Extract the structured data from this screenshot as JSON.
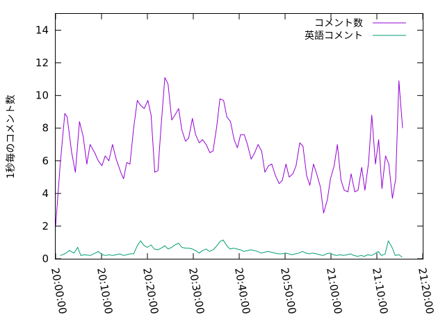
{
  "chart_data": {
    "type": "line",
    "title": "",
    "xlabel": "",
    "ylabel": "1秒毎のコメント数",
    "x_tick_labels": [
      "20:00:00",
      "20:10:00",
      "20:20:00",
      "20:30:00",
      "20:40:00",
      "20:50:00",
      "21:00:00",
      "21:10:00",
      "21:20:00"
    ],
    "x_tick_minutes": [
      0,
      10,
      20,
      30,
      40,
      50,
      60,
      70,
      80
    ],
    "xlim_minutes": [
      0,
      80
    ],
    "y_ticks": [
      0,
      2,
      4,
      6,
      8,
      10,
      12,
      14
    ],
    "ylim": [
      0,
      15
    ],
    "grid": false,
    "legend_position": "top-right",
    "series": [
      {
        "name": "コメント数",
        "color": "#9400d3",
        "points": [
          [
            0.0,
            2.0
          ],
          [
            1.0,
            5.8
          ],
          [
            2.0,
            8.9
          ],
          [
            2.5,
            8.7
          ],
          [
            3.5,
            6.5
          ],
          [
            4.3,
            5.3
          ],
          [
            5.2,
            8.4
          ],
          [
            6.0,
            7.5
          ],
          [
            6.8,
            5.8
          ],
          [
            7.5,
            7.0
          ],
          [
            8.5,
            6.5
          ],
          [
            9.3,
            6.0
          ],
          [
            10.1,
            5.7
          ],
          [
            10.8,
            6.3
          ],
          [
            11.6,
            6.0
          ],
          [
            12.4,
            7.0
          ],
          [
            13.2,
            6.1
          ],
          [
            14.2,
            5.3
          ],
          [
            14.8,
            4.9
          ],
          [
            15.5,
            5.9
          ],
          [
            16.2,
            5.8
          ],
          [
            17.0,
            8.0
          ],
          [
            17.8,
            9.7
          ],
          [
            18.5,
            9.4
          ],
          [
            19.3,
            9.2
          ],
          [
            20.1,
            9.7
          ],
          [
            20.8,
            8.8
          ],
          [
            21.6,
            5.3
          ],
          [
            22.3,
            5.4
          ],
          [
            23.0,
            8.2
          ],
          [
            23.8,
            11.1
          ],
          [
            24.5,
            10.7
          ],
          [
            25.3,
            8.5
          ],
          [
            26.0,
            8.8
          ],
          [
            26.8,
            9.2
          ],
          [
            27.5,
            7.9
          ],
          [
            28.3,
            7.2
          ],
          [
            29.0,
            7.4
          ],
          [
            29.8,
            8.6
          ],
          [
            30.5,
            7.6
          ],
          [
            31.3,
            7.1
          ],
          [
            32.0,
            7.3
          ],
          [
            32.8,
            7.0
          ],
          [
            33.6,
            6.5
          ],
          [
            34.3,
            6.6
          ],
          [
            35.1,
            8.1
          ],
          [
            35.8,
            9.8
          ],
          [
            36.6,
            9.7
          ],
          [
            37.3,
            8.7
          ],
          [
            38.1,
            8.4
          ],
          [
            38.9,
            7.3
          ],
          [
            39.6,
            6.8
          ],
          [
            40.3,
            7.6
          ],
          [
            41.1,
            7.6
          ],
          [
            41.8,
            7.0
          ],
          [
            42.6,
            6.1
          ],
          [
            43.4,
            6.5
          ],
          [
            44.1,
            7.0
          ],
          [
            44.9,
            6.6
          ],
          [
            45.6,
            5.3
          ],
          [
            46.4,
            5.7
          ],
          [
            47.1,
            5.8
          ],
          [
            47.9,
            5.1
          ],
          [
            48.7,
            4.6
          ],
          [
            49.4,
            4.8
          ],
          [
            50.2,
            5.8
          ],
          [
            50.9,
            5.0
          ],
          [
            51.7,
            5.2
          ],
          [
            52.4,
            5.7
          ],
          [
            53.2,
            7.1
          ],
          [
            53.9,
            6.9
          ],
          [
            54.7,
            5.1
          ],
          [
            55.4,
            4.5
          ],
          [
            56.2,
            5.8
          ],
          [
            56.9,
            5.2
          ],
          [
            57.7,
            4.4
          ],
          [
            58.4,
            2.8
          ],
          [
            59.2,
            3.6
          ],
          [
            59.9,
            4.9
          ],
          [
            60.7,
            5.7
          ],
          [
            61.4,
            7.0
          ],
          [
            62.2,
            4.8
          ],
          [
            62.9,
            4.2
          ],
          [
            63.7,
            4.1
          ],
          [
            64.4,
            5.2
          ],
          [
            65.2,
            4.1
          ],
          [
            65.9,
            4.2
          ],
          [
            66.7,
            5.6
          ],
          [
            67.4,
            4.2
          ],
          [
            68.2,
            5.9
          ],
          [
            68.9,
            8.8
          ],
          [
            69.7,
            5.8
          ],
          [
            70.4,
            7.3
          ],
          [
            71.1,
            4.3
          ],
          [
            71.9,
            6.3
          ],
          [
            72.6,
            5.8
          ],
          [
            73.4,
            3.7
          ],
          [
            74.1,
            4.9
          ],
          [
            74.8,
            10.9
          ],
          [
            75.6,
            8.0
          ]
        ]
      },
      {
        "name": "英語コメント",
        "color": "#009e73",
        "points": [
          [
            1.0,
            0.2
          ],
          [
            2.0,
            0.3
          ],
          [
            3.0,
            0.5
          ],
          [
            4.0,
            0.35
          ],
          [
            4.8,
            0.7
          ],
          [
            5.5,
            0.2
          ],
          [
            6.3,
            0.25
          ],
          [
            7.5,
            0.2
          ],
          [
            8.3,
            0.3
          ],
          [
            9.3,
            0.45
          ],
          [
            10.1,
            0.25
          ],
          [
            10.9,
            0.2
          ],
          [
            11.6,
            0.25
          ],
          [
            12.4,
            0.2
          ],
          [
            13.2,
            0.25
          ],
          [
            14.0,
            0.3
          ],
          [
            14.8,
            0.2
          ],
          [
            15.5,
            0.25
          ],
          [
            16.3,
            0.3
          ],
          [
            17.0,
            0.3
          ],
          [
            17.8,
            0.8
          ],
          [
            18.5,
            1.1
          ],
          [
            19.3,
            0.8
          ],
          [
            20.0,
            0.7
          ],
          [
            20.8,
            0.85
          ],
          [
            21.5,
            0.6
          ],
          [
            22.3,
            0.55
          ],
          [
            23.0,
            0.65
          ],
          [
            23.8,
            0.8
          ],
          [
            24.5,
            0.6
          ],
          [
            25.3,
            0.7
          ],
          [
            26.0,
            0.85
          ],
          [
            26.8,
            0.95
          ],
          [
            27.5,
            0.7
          ],
          [
            28.3,
            0.65
          ],
          [
            29.0,
            0.65
          ],
          [
            29.8,
            0.6
          ],
          [
            30.5,
            0.5
          ],
          [
            31.3,
            0.35
          ],
          [
            32.0,
            0.5
          ],
          [
            32.8,
            0.6
          ],
          [
            33.5,
            0.45
          ],
          [
            34.3,
            0.55
          ],
          [
            35.0,
            0.75
          ],
          [
            35.8,
            1.05
          ],
          [
            36.5,
            1.15
          ],
          [
            37.3,
            0.8
          ],
          [
            38.0,
            0.6
          ],
          [
            38.8,
            0.65
          ],
          [
            39.5,
            0.6
          ],
          [
            40.3,
            0.55
          ],
          [
            41.0,
            0.45
          ],
          [
            41.8,
            0.5
          ],
          [
            42.5,
            0.55
          ],
          [
            43.3,
            0.5
          ],
          [
            44.0,
            0.45
          ],
          [
            44.8,
            0.35
          ],
          [
            45.5,
            0.4
          ],
          [
            46.3,
            0.45
          ],
          [
            47.0,
            0.4
          ],
          [
            47.8,
            0.35
          ],
          [
            48.5,
            0.3
          ],
          [
            49.3,
            0.3
          ],
          [
            50.0,
            0.35
          ],
          [
            50.8,
            0.3
          ],
          [
            51.5,
            0.25
          ],
          [
            52.3,
            0.3
          ],
          [
            53.0,
            0.35
          ],
          [
            53.8,
            0.45
          ],
          [
            54.5,
            0.35
          ],
          [
            55.3,
            0.3
          ],
          [
            56.0,
            0.35
          ],
          [
            56.8,
            0.3
          ],
          [
            57.5,
            0.25
          ],
          [
            58.3,
            0.2
          ],
          [
            59.0,
            0.3
          ],
          [
            59.8,
            0.35
          ],
          [
            60.5,
            0.25
          ],
          [
            61.3,
            0.2
          ],
          [
            62.0,
            0.25
          ],
          [
            62.8,
            0.2
          ],
          [
            63.5,
            0.25
          ],
          [
            64.3,
            0.3
          ],
          [
            65.0,
            0.2
          ],
          [
            65.8,
            0.15
          ],
          [
            66.5,
            0.2
          ],
          [
            67.3,
            0.15
          ],
          [
            68.0,
            0.25
          ],
          [
            68.8,
            0.2
          ],
          [
            69.5,
            0.3
          ],
          [
            70.3,
            0.45
          ],
          [
            71.0,
            0.2
          ],
          [
            71.8,
            0.3
          ],
          [
            72.5,
            1.1
          ],
          [
            73.3,
            0.7
          ],
          [
            74.0,
            0.2
          ],
          [
            74.8,
            0.25
          ],
          [
            75.5,
            0.1
          ]
        ]
      }
    ]
  }
}
